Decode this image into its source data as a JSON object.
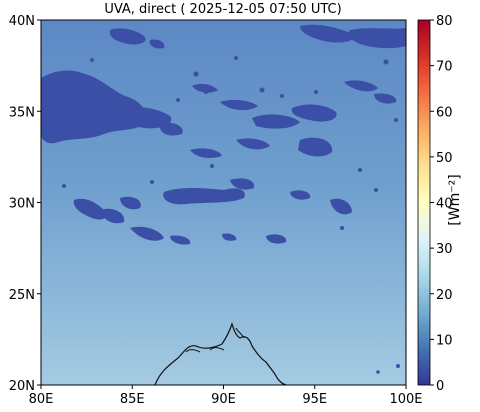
{
  "title": "UVA, direct ( 2025-12-05 07:50 UTC)",
  "map": {
    "lon_range": [
      80,
      100
    ],
    "lat_range": [
      20,
      40
    ],
    "x_ticks": [
      {
        "value": 80,
        "label": "80E"
      },
      {
        "value": 85,
        "label": "85E"
      },
      {
        "value": 90,
        "label": "90E"
      },
      {
        "value": 95,
        "label": "95E"
      },
      {
        "value": 100,
        "label": "100E"
      }
    ],
    "y_ticks": [
      {
        "value": 40,
        "label": "40N"
      },
      {
        "value": 35,
        "label": "35N"
      },
      {
        "value": 30,
        "label": "30N"
      },
      {
        "value": 25,
        "label": "25N"
      },
      {
        "value": 20,
        "label": "20N"
      }
    ],
    "field_colors": {
      "north": "#5c88c4",
      "mid": "#6f9fce",
      "south": "#a4cbe2",
      "cloud": "#3b4fa6",
      "coastline": "#111111"
    }
  },
  "colorbar": {
    "label": "[Wm⁻²]",
    "range": [
      0,
      80
    ],
    "ticks": [
      {
        "value": 80,
        "label": "80"
      },
      {
        "value": 70,
        "label": "70"
      },
      {
        "value": 60,
        "label": "60"
      },
      {
        "value": 50,
        "label": "50"
      },
      {
        "value": 40,
        "label": "40"
      },
      {
        "value": 30,
        "label": "30"
      },
      {
        "value": 20,
        "label": "20"
      },
      {
        "value": 10,
        "label": "10"
      },
      {
        "value": 0,
        "label": "0"
      }
    ],
    "colors": [
      "#313695",
      "#4575b4",
      "#74add1",
      "#abd9e9",
      "#e0f3f8",
      "#ffffbf",
      "#fee090",
      "#fdae61",
      "#f46d43",
      "#d73027",
      "#a50026"
    ]
  }
}
